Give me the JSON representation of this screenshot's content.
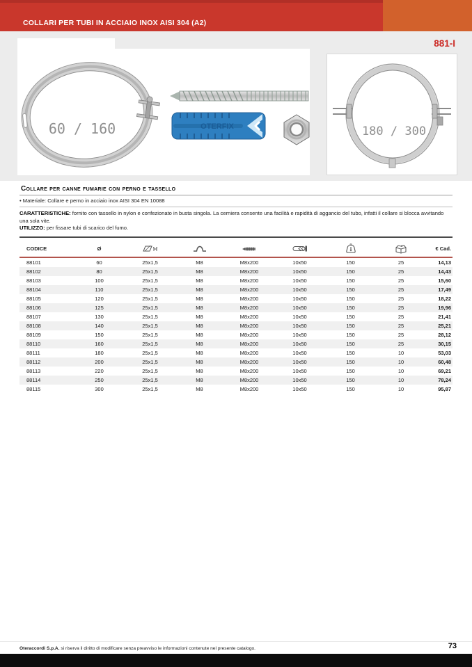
{
  "header": {
    "title": "COLLARI PER TUBI IN ACCIAIO INOX AISI 304 (A2)",
    "page_code": "881-I"
  },
  "colors": {
    "bar_red": "#c9372c",
    "bar_orange": "#d2612c",
    "code_red": "#cb2b26",
    "table_header_rule": "#b2544c",
    "band_gray": "#ececec",
    "dowel_blue": "#2e7fc0"
  },
  "photos": {
    "collar_small_label": "60 / 160",
    "collar_large_label": "180 / 300",
    "dowel_brand": "OTERFIX"
  },
  "product": {
    "name": "Collare per canne fumarie con perno e tassello",
    "material_line": "• Materiale: Collare e perno in acciaio inox AISI 304 EN 10088",
    "caratteristiche_label": "CARATTERISTICHE:",
    "caratteristiche_text": " fornito con tassello in nylon e confezionato in busta singola. La cerniera consente una facilità e rapidità di aggancio del tubo, infatti il collare si blocca avvitando una sola vite.",
    "utilizzo_label": "UTILIZZO:",
    "utilizzo_text": " per fissare tubi di scarico del fumo."
  },
  "table": {
    "columns": [
      {
        "label": "CODICE"
      },
      {
        "label": "Ø"
      },
      {
        "icon": "strip-dimension-icon"
      },
      {
        "icon": "collar-arch-icon"
      },
      {
        "icon": "screw-icon"
      },
      {
        "icon": "dowel-icon"
      },
      {
        "icon": "load-icon"
      },
      {
        "icon": "carton-icon"
      },
      {
        "label": "€ Cad."
      }
    ],
    "rows": [
      [
        "88101",
        "60",
        "25x1,5",
        "M8",
        "M8x200",
        "10x50",
        "150",
        "25",
        "14,13"
      ],
      [
        "88102",
        "80",
        "25x1,5",
        "M8",
        "M8x200",
        "10x50",
        "150",
        "25",
        "14,43"
      ],
      [
        "88103",
        "100",
        "25x1,5",
        "M8",
        "M8x200",
        "10x50",
        "150",
        "25",
        "15,60"
      ],
      [
        "88104",
        "110",
        "25x1,5",
        "M8",
        "M8x200",
        "10x50",
        "150",
        "25",
        "17,49"
      ],
      [
        "88105",
        "120",
        "25x1,5",
        "M8",
        "M8x200",
        "10x50",
        "150",
        "25",
        "18,22"
      ],
      [
        "88106",
        "125",
        "25x1,5",
        "M8",
        "M8x200",
        "10x50",
        "150",
        "25",
        "19,96"
      ],
      [
        "88107",
        "130",
        "25x1,5",
        "M8",
        "M8x200",
        "10x50",
        "150",
        "25",
        "21,41"
      ],
      [
        "88108",
        "140",
        "25x1,5",
        "M8",
        "M8x200",
        "10x50",
        "150",
        "25",
        "25,21"
      ],
      [
        "88109",
        "150",
        "25x1,5",
        "M8",
        "M8x200",
        "10x50",
        "150",
        "25",
        "28,12"
      ],
      [
        "88110",
        "160",
        "25x1,5",
        "M8",
        "M8x200",
        "10x50",
        "150",
        "25",
        "30,15"
      ],
      [
        "88111",
        "180",
        "25x1,5",
        "M8",
        "M8x200",
        "10x50",
        "150",
        "10",
        "53,03"
      ],
      [
        "88112",
        "200",
        "25x1,5",
        "M8",
        "M8x200",
        "10x50",
        "150",
        "10",
        "60,48"
      ],
      [
        "88113",
        "220",
        "25x1,5",
        "M8",
        "M8x200",
        "10x50",
        "150",
        "10",
        "69,21"
      ],
      [
        "88114",
        "250",
        "25x1,5",
        "M8",
        "M8x200",
        "10x50",
        "150",
        "10",
        "78,24"
      ],
      [
        "88115",
        "300",
        "25x1,5",
        "M8",
        "M8x200",
        "10x50",
        "150",
        "10",
        "95,87"
      ]
    ]
  },
  "footer": {
    "company": "Oteraccordi S.p.A.",
    "disclaimer": " si riserva il diritto di modificare senza preavviso le informazioni contenute nel presente catalogo.",
    "page_number": "73"
  }
}
